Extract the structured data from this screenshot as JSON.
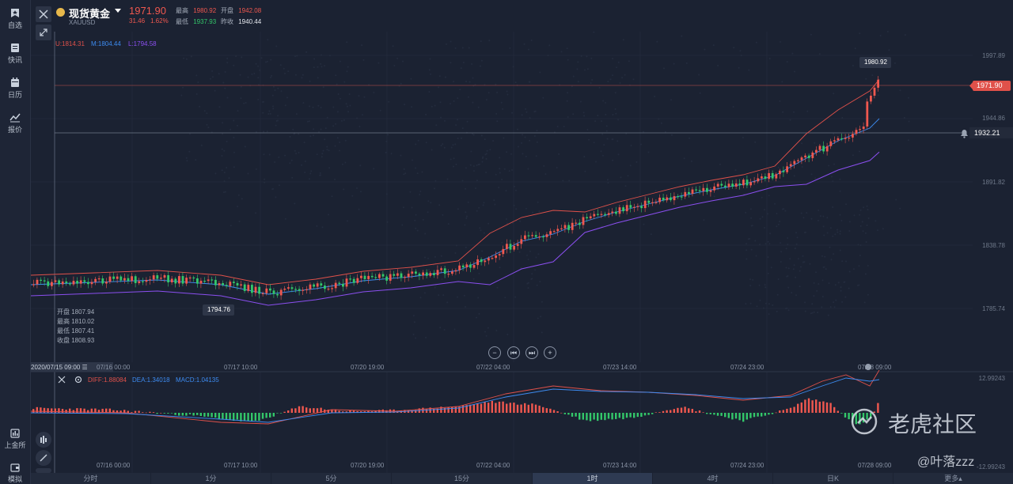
{
  "sidebar": {
    "top": [
      {
        "label": "自选",
        "icon": "star-bookmark-icon"
      },
      {
        "label": "快讯",
        "icon": "news-icon"
      },
      {
        "label": "日历",
        "icon": "calendar-icon"
      },
      {
        "label": "报价",
        "icon": "chart-line-icon"
      }
    ],
    "bottom": [
      {
        "label": "上金所",
        "icon": "exchange-icon"
      },
      {
        "label": "模拟",
        "icon": "wallet-icon"
      }
    ]
  },
  "header": {
    "title": "现货黄金",
    "symbol": "XAUUSD",
    "price": "1971.90",
    "change": "31.46",
    "change_pct": "1.62%",
    "high_label": "最高",
    "high": "1980.92",
    "open_label": "开盘",
    "open": "1942.08",
    "low_label": "最低",
    "low": "1937.93",
    "prev_label": "昨收",
    "prev": "1940.44"
  },
  "boll": {
    "u": "U:1814.31",
    "m": "M:1804.44",
    "l": "L:1794.58"
  },
  "price_axis": [
    "1997.89",
    "1944.86",
    "1891.82",
    "1838.78",
    "1785.74"
  ],
  "tags": {
    "high_marker": "1980.92",
    "current_price": "1971.90",
    "alert_price": "1932.21",
    "low_marker": "1794.76"
  },
  "ohlc_box": {
    "open": "开盘 1807.94",
    "high": "最高 1810.02",
    "low": "最低 1807.41",
    "close": "收盘 1808.93"
  },
  "time_axis": {
    "cursor": "2020/07/15 09:00",
    "labels": [
      "07/16 00:00",
      "07/17 10:00",
      "07/20 19:00",
      "07/22 04:00",
      "07/23 14:00",
      "07/24 23:00",
      "07/28 09:00"
    ]
  },
  "macd": {
    "diff": "DIFF:1.88084",
    "dea": "DEA:1.34018",
    "macd": "MACD:1.04135",
    "axis_top": "12.99243",
    "axis_bottom": "-12.99243"
  },
  "tabs": [
    "分时",
    "1分",
    "5分",
    "15分",
    "1时",
    "4时",
    "日K",
    "更多▴"
  ],
  "active_tab": "1时",
  "watermark": {
    "brand": "老虎社区",
    "user": "@叶落zzz"
  },
  "colors": {
    "up": "#f0584f",
    "down": "#33c86a",
    "boll_u": "#e0514a",
    "boll_m": "#3d8bf0",
    "boll_l": "#8b4ff0"
  }
}
